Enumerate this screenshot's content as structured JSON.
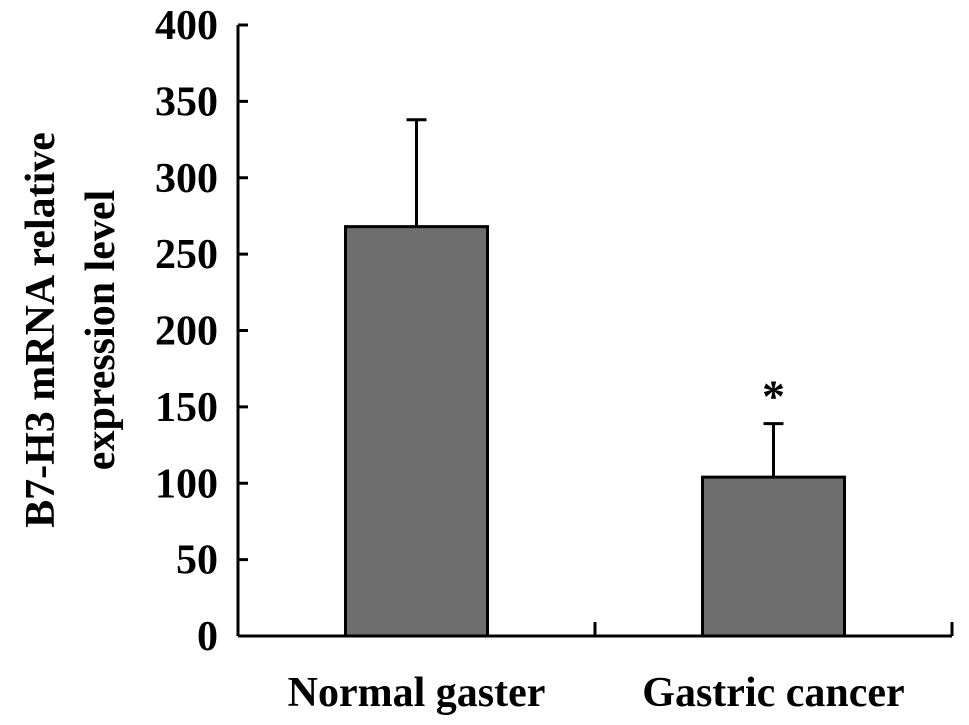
{
  "chart_data": {
    "type": "bar",
    "title": "",
    "xlabel": "",
    "ylabel_lines": [
      "B7-H3 mRNA relative",
      "expression level"
    ],
    "categories": [
      "Normal gaster",
      "Gastric cancer"
    ],
    "values": [
      268,
      104
    ],
    "error_upper": [
      70,
      35
    ],
    "annotations": [
      "",
      "*"
    ],
    "ylim": [
      0,
      400
    ],
    "yticks": [
      0,
      50,
      100,
      150,
      200,
      250,
      300,
      350,
      400
    ],
    "grid": false,
    "legend": "none",
    "colors": {
      "bar_fill": "#6e6e6e",
      "bar_stroke": "#000000",
      "axis": "#000000"
    }
  }
}
